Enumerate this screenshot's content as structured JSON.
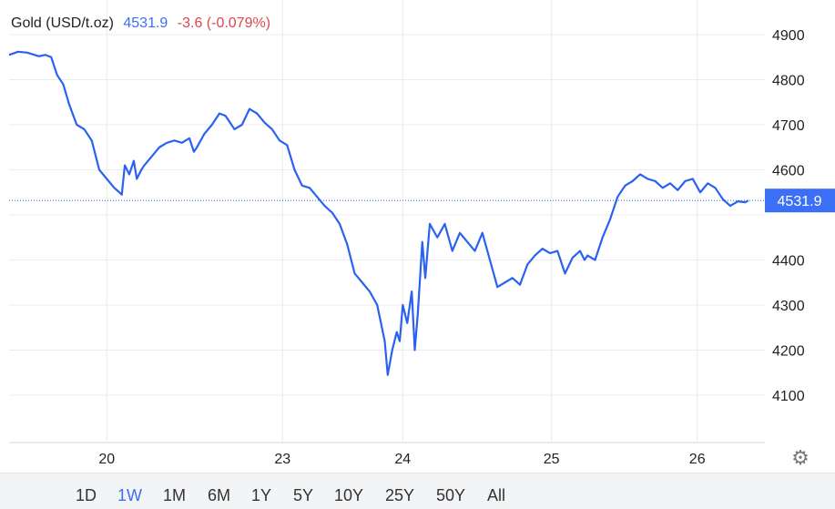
{
  "header": {
    "symbol": "Gold (USD/t.oz)",
    "price": "4531.9",
    "change": "-3.6 (-0.079%)"
  },
  "colors": {
    "line": "#2a62f0",
    "price": "#3b6ff5",
    "change": "#e0464b",
    "grid": "#ececec",
    "axis": "#d6d6d6"
  },
  "ranges": {
    "items": [
      "1D",
      "1W",
      "1M",
      "6M",
      "1Y",
      "5Y",
      "10Y",
      "25Y",
      "50Y",
      "All"
    ],
    "active": "1W"
  },
  "settings_icon": "gear-icon",
  "chart_data": {
    "type": "line",
    "title": "Gold (USD/t.oz)",
    "xlabel": "",
    "ylabel": "",
    "y_ticks": [
      4100,
      4200,
      4300,
      4400,
      4500,
      4600,
      4700,
      4800,
      4900
    ],
    "y_tick_labels": [
      "4100",
      "4200",
      "4300",
      "4400",
      "4600",
      "4700",
      "4800",
      "4900"
    ],
    "x_ticks": [
      "20",
      "23",
      "24",
      "25",
      "26"
    ],
    "ylim": [
      4000,
      4930
    ],
    "current_price": 4531.9,
    "current_price_label": "4531.9",
    "grid": true,
    "series": [
      {
        "x": [
          0,
          0.3,
          0.6,
          1.0,
          1.2,
          1.4,
          1.6,
          1.8,
          2.0,
          2.25,
          2.5,
          2.75,
          3.0,
          3.5,
          3.75,
          3.85,
          4.0,
          4.15,
          4.25,
          4.4,
          4.5,
          4.75,
          5.0,
          5.25,
          5.5,
          5.75,
          6.0,
          6.15,
          6.25,
          6.5,
          6.75,
          7.0,
          7.2,
          7.35,
          7.5,
          7.75,
          8.0,
          8.25,
          8.5,
          8.75,
          9.0,
          9.25,
          9.5,
          9.75,
          10.0,
          10.25,
          10.5,
          10.75,
          11.0,
          11.25,
          11.5,
          11.75,
          12.0,
          12.25,
          12.5,
          12.6,
          12.75,
          12.9,
          13.0,
          13.1,
          13.25,
          13.4,
          13.5,
          13.6,
          13.75,
          13.85,
          14.0,
          14.25,
          14.5,
          14.75,
          15.0,
          15.25,
          15.5,
          15.75,
          16.0,
          16.25,
          16.5,
          16.75,
          17.0,
          17.25,
          17.5,
          17.75,
          18.0,
          18.25,
          18.5,
          18.75,
          19.0,
          19.15,
          19.25,
          19.5,
          19.75,
          20.0,
          20.25,
          20.5,
          20.75,
          21.0,
          21.25,
          21.5,
          21.75,
          22.0,
          22.25,
          22.5,
          22.75,
          23.0,
          23.25,
          23.5,
          23.75,
          24.0,
          24.25,
          24.5,
          24.6
        ],
        "y": [
          4855,
          4862,
          4860,
          4852,
          4855,
          4850,
          4810,
          4790,
          4745,
          4700,
          4690,
          4665,
          4600,
          4560,
          4545,
          4610,
          4590,
          4620,
          4580,
          4600,
          4610,
          4630,
          4650,
          4660,
          4665,
          4660,
          4670,
          4640,
          4650,
          4680,
          4700,
          4725,
          4720,
          4705,
          4690,
          4700,
          4735,
          4725,
          4705,
          4690,
          4665,
          4655,
          4600,
          4565,
          4560,
          4540,
          4520,
          4505,
          4480,
          4435,
          4370,
          4350,
          4330,
          4300,
          4220,
          4145,
          4200,
          4240,
          4220,
          4300,
          4260,
          4330,
          4200,
          4280,
          4440,
          4360,
          4480,
          4450,
          4480,
          4420,
          4460,
          4440,
          4420,
          4460,
          4400,
          4340,
          4350,
          4360,
          4345,
          4390,
          4410,
          4425,
          4415,
          4420,
          4370,
          4405,
          4420,
          4400,
          4410,
          4400,
          4450,
          4490,
          4540,
          4565,
          4575,
          4590,
          4580,
          4575,
          4560,
          4570,
          4555,
          4575,
          4580,
          4550,
          4570,
          4560,
          4535,
          4520,
          4530,
          4528,
          4531.9
        ]
      }
    ]
  }
}
